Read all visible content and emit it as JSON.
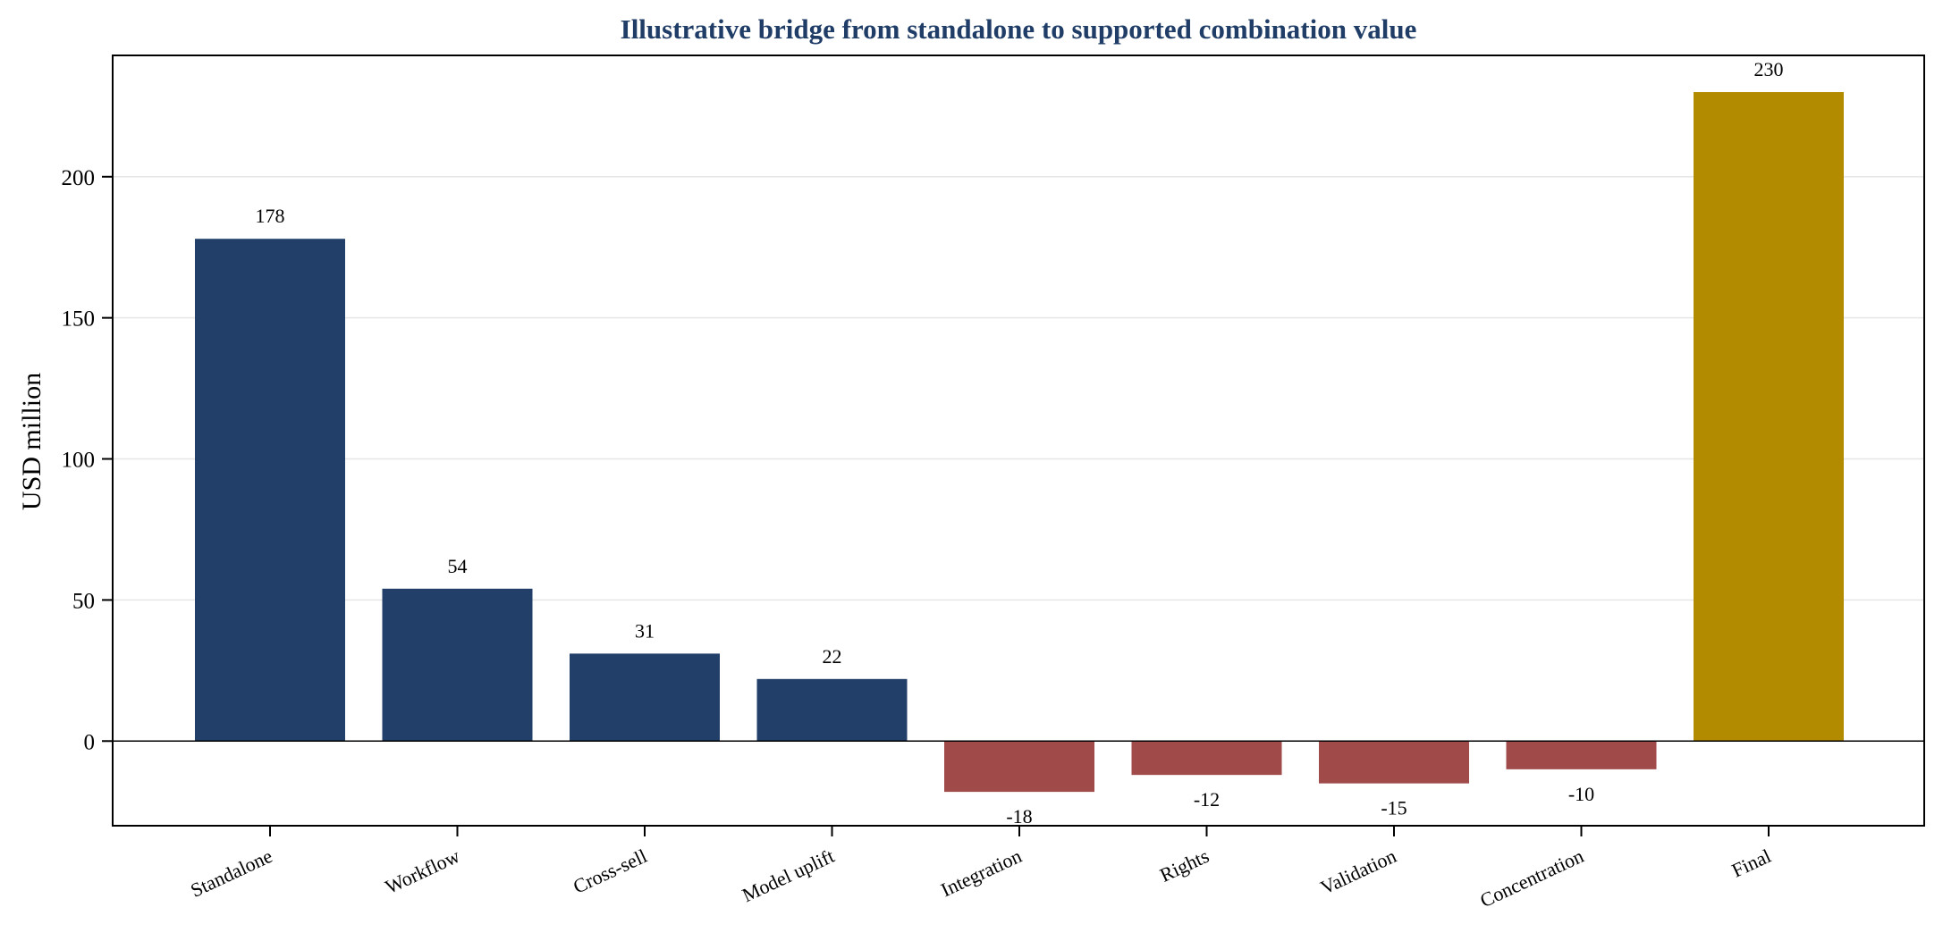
{
  "chart_data": {
    "type": "bar",
    "title": "Illustrative bridge from standalone to supported combination value",
    "xlabel": "",
    "ylabel": "USD million",
    "categories": [
      "Standalone",
      "Workflow",
      "Cross-sell",
      "Model uplift",
      "Integration",
      "Rights",
      "Validation",
      "Concentration",
      "Final"
    ],
    "values": [
      178,
      54,
      31,
      22,
      -18,
      -12,
      -15,
      -10,
      230
    ],
    "data_labels": [
      "178",
      "54",
      "31",
      "22",
      "-18",
      "-12",
      "-15",
      "-10",
      "230"
    ],
    "ylim": [
      -30,
      243
    ],
    "yticks": [
      0,
      50,
      100,
      150,
      200
    ],
    "grid": "horizontal",
    "colors": {
      "positive": "#213f69",
      "negative": "#a04a4a",
      "final": "#b38b00",
      "title": "#1f3d66",
      "grid": "#e6e6e6"
    }
  }
}
